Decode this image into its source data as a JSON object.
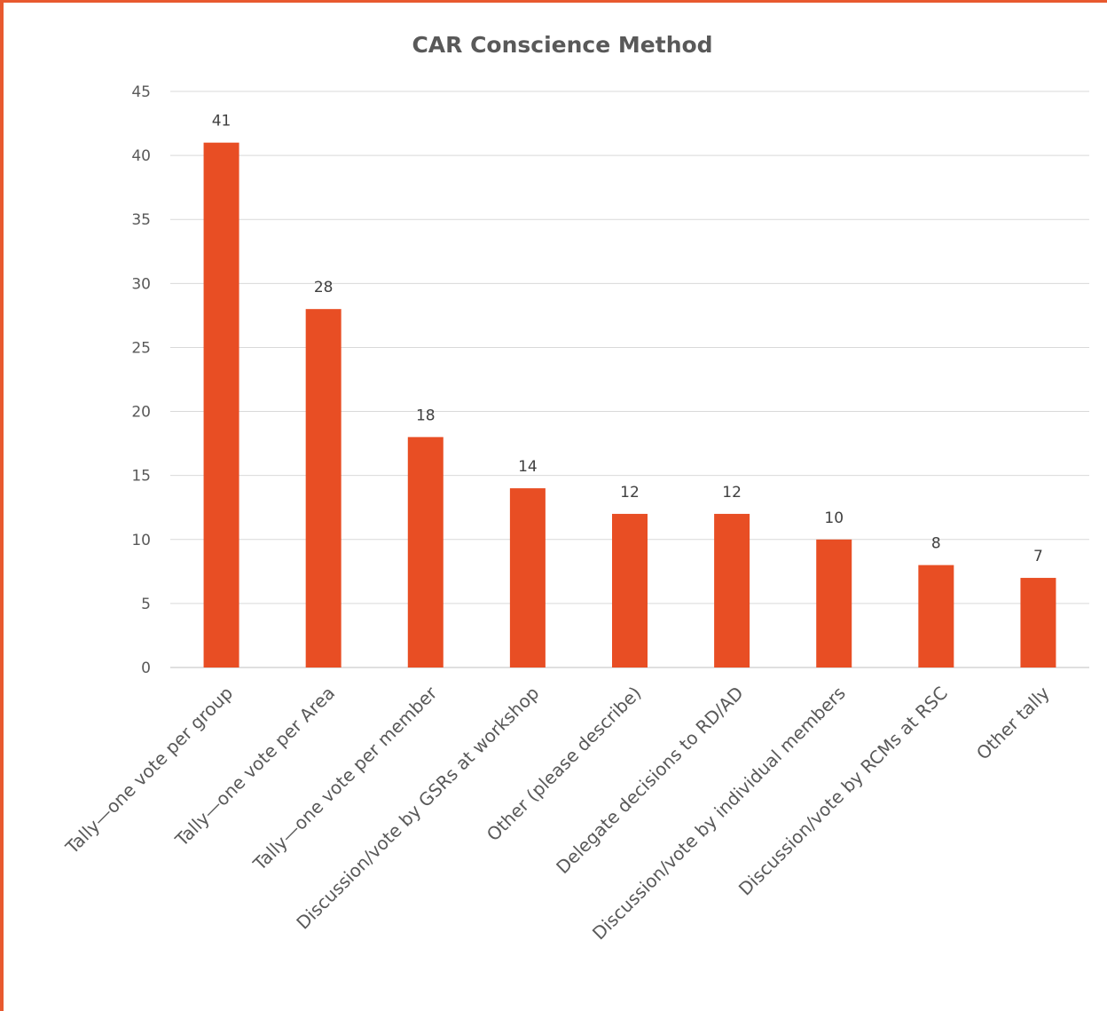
{
  "chart_data": {
    "type": "bar",
    "title": "CAR Conscience Method",
    "xlabel": "",
    "ylabel": "",
    "ylim": [
      0,
      45
    ],
    "yticks": [
      0,
      5,
      10,
      15,
      20,
      25,
      30,
      35,
      40,
      45
    ],
    "grid": true,
    "legend": "none",
    "bar_color": "#e84e24",
    "frame_color": "#e8592f",
    "categories": [
      "Tally—one vote per group",
      "Tally—one vote per Area",
      "Tally—one vote per member",
      "Discussion/vote by GSRs at workshop",
      "Other (please describe)",
      "Delegate decisions to RD/AD",
      "Discussion/vote by individual members",
      "Discussion/vote by RCMs at RSC",
      "Other tally"
    ],
    "values": [
      41,
      28,
      18,
      14,
      12,
      12,
      10,
      8,
      7
    ],
    "data_labels": true
  }
}
